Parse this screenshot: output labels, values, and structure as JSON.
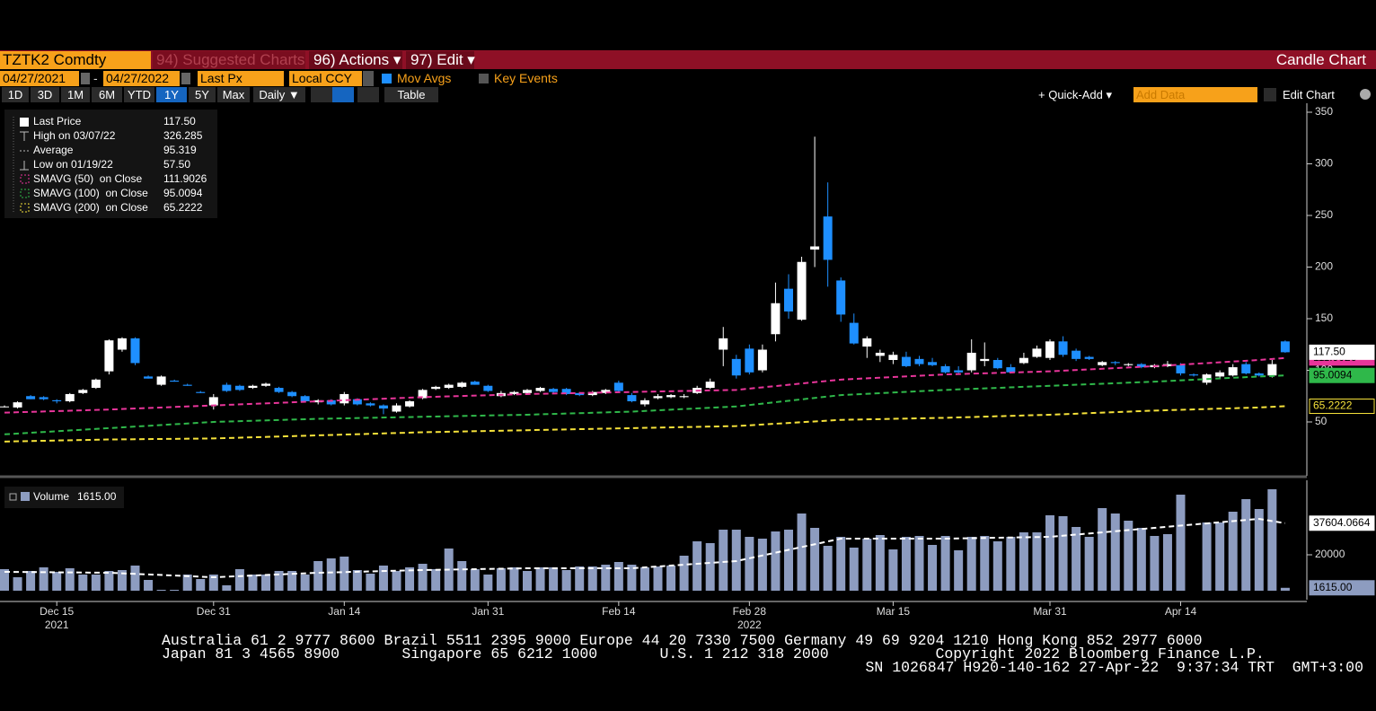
{
  "toolbar": {
    "ticker": "TZTK2 Comdty",
    "menu": [
      "94) Suggested Charts",
      "96) Actions ▾",
      "97) Edit ▾"
    ],
    "chart_title": "Candle Chart",
    "start_date": "04/27/2021",
    "date_separator": "-",
    "end_date": "04/27/2022",
    "field": "Last Px",
    "currency": "Local CCY",
    "options": [
      "Mov Avgs",
      "Key Events"
    ],
    "periods": [
      "1D",
      "3D",
      "1M",
      "6M",
      "YTD",
      "1Y",
      "5Y",
      "Max"
    ],
    "frequency": "Daily ▼",
    "table": "Table",
    "quick_add": "+ Quick-Add ▾",
    "add_data": "Add Data",
    "edit_chart": "Edit Chart"
  },
  "chart_data": [
    {
      "type": "candlestick",
      "up_color": "#ffffff",
      "down_color": "#1e8fff",
      "categories": [
        null,
        null,
        null,
        null,
        "Dec 15",
        null,
        null,
        null,
        null,
        null,
        null,
        null,
        null,
        null,
        null,
        null,
        "Dec 31",
        null,
        null,
        null,
        null,
        null,
        null,
        null,
        null,
        null,
        "Jan 14",
        null,
        null,
        null,
        null,
        null,
        null,
        null,
        null,
        null,
        null,
        "Jan 31",
        null,
        null,
        null,
        null,
        null,
        null,
        null,
        null,
        null,
        "Feb 14",
        null,
        null,
        null,
        null,
        null,
        null,
        null,
        null,
        null,
        "Feb 28",
        null,
        null,
        null,
        null,
        null,
        null,
        null,
        null,
        null,
        null,
        "Mar 15",
        null,
        null,
        null,
        null,
        null,
        null,
        null,
        null,
        null,
        null,
        null,
        "Mar 31",
        null,
        null,
        null,
        null,
        null,
        null,
        null,
        null,
        null,
        "Apr 14",
        null,
        null,
        null,
        null,
        null,
        null,
        null,
        null
      ],
      "years": [
        null,
        null,
        null,
        null,
        "2021",
        null,
        null,
        null,
        null,
        null,
        null,
        null,
        null,
        null,
        null,
        null,
        null,
        null,
        null,
        null,
        null,
        null,
        null,
        null,
        null,
        null,
        null,
        null,
        null,
        null,
        null,
        null,
        null,
        null,
        null,
        null,
        null,
        null,
        null,
        null,
        null,
        null,
        null,
        null,
        null,
        null,
        null,
        null,
        null,
        null,
        null,
        null,
        null,
        null,
        null,
        null,
        null,
        "2022",
        null,
        null,
        null,
        null,
        null,
        null,
        null,
        null,
        null,
        null,
        null,
        null,
        null,
        null,
        null,
        null,
        null,
        null,
        null,
        null,
        null,
        null,
        null,
        null,
        null,
        null,
        null,
        null,
        null,
        null,
        null,
        null,
        null,
        null,
        null,
        null,
        null,
        null,
        null,
        null,
        null
      ],
      "candles": [
        [
          65,
          66,
          64,
          65
        ],
        [
          64,
          70,
          63,
          69
        ],
        [
          75,
          76,
          72,
          72
        ],
        [
          74,
          75,
          71,
          72
        ],
        [
          71,
          72,
          68,
          70
        ],
        [
          70,
          78,
          69,
          77
        ],
        [
          78,
          82,
          77,
          81
        ],
        [
          83,
          92,
          82,
          91
        ],
        [
          99,
          130,
          96,
          129
        ],
        [
          120,
          132,
          118,
          131
        ],
        [
          131,
          132,
          105,
          107
        ],
        [
          94,
          95,
          92,
          92
        ],
        [
          86,
          95,
          85,
          94
        ],
        [
          90,
          91,
          89,
          89
        ],
        [
          86,
          87,
          85,
          85
        ],
        [
          79,
          80,
          78,
          78
        ],
        [
          66,
          77,
          62,
          74
        ],
        [
          86,
          88,
          79,
          80
        ],
        [
          85,
          86,
          80,
          81
        ],
        [
          83,
          86,
          82,
          85
        ],
        [
          85,
          88,
          84,
          87
        ],
        [
          83,
          84,
          78,
          79
        ],
        [
          79,
          80,
          74,
          75
        ],
        [
          75,
          76,
          69,
          70
        ],
        [
          69,
          72,
          67,
          71
        ],
        [
          71,
          72,
          66,
          67
        ],
        [
          68,
          79,
          66,
          77
        ],
        [
          72,
          73,
          66,
          67
        ],
        [
          68,
          69,
          65,
          66
        ],
        [
          66,
          67,
          57.5,
          63
        ],
        [
          60,
          68,
          59,
          66
        ],
        [
          65,
          71,
          64,
          70
        ],
        [
          73,
          82,
          72,
          81
        ],
        [
          82,
          85,
          81,
          84
        ],
        [
          83,
          87,
          82,
          86
        ],
        [
          84,
          89,
          83,
          88
        ],
        [
          89,
          90,
          86,
          86
        ],
        [
          85,
          86,
          79,
          80
        ],
        [
          75,
          80,
          74,
          78
        ],
        [
          77,
          80,
          76,
          79
        ],
        [
          78,
          82,
          77,
          81
        ],
        [
          80,
          84,
          79,
          83
        ],
        [
          82,
          83,
          78,
          79
        ],
        [
          82,
          83,
          76,
          77
        ],
        [
          78,
          79,
          75,
          76
        ],
        [
          76,
          80,
          75,
          79
        ],
        [
          78,
          82,
          77,
          81
        ],
        [
          88,
          90,
          79,
          80
        ],
        [
          76,
          78,
          69,
          70
        ],
        [
          67,
          73,
          65,
          71
        ],
        [
          73,
          77,
          72,
          75
        ],
        [
          74,
          77,
          73,
          76
        ],
        [
          74,
          77,
          73,
          75
        ],
        [
          78,
          85,
          77,
          83
        ],
        [
          83,
          92,
          82,
          89
        ],
        [
          120,
          142,
          104,
          131
        ],
        [
          111,
          115,
          92,
          95
        ],
        [
          121,
          125,
          96,
          98
        ],
        [
          100,
          125,
          98,
          120
        ],
        [
          135,
          185,
          128,
          165
        ],
        [
          179,
          193,
          150,
          157
        ],
        [
          149,
          210,
          148,
          205
        ],
        [
          217,
          326.285,
          200,
          220
        ],
        [
          249,
          282,
          181,
          207
        ],
        [
          187,
          190,
          147,
          154
        ],
        [
          146,
          155,
          125,
          126
        ],
        [
          123,
          133,
          112,
          131
        ],
        [
          114,
          120,
          108,
          117
        ],
        [
          110,
          118,
          106,
          115
        ],
        [
          113,
          118,
          103,
          104
        ],
        [
          111,
          114,
          104,
          106
        ],
        [
          108,
          112,
          104,
          105
        ],
        [
          104,
          106,
          97,
          98
        ],
        [
          100,
          104,
          97,
          98
        ],
        [
          100,
          130,
          98,
          117
        ],
        [
          109,
          127,
          104,
          111
        ],
        [
          110,
          112,
          101,
          102
        ],
        [
          103,
          106,
          97,
          98
        ],
        [
          107,
          117,
          106,
          112
        ],
        [
          113,
          124,
          112,
          121
        ],
        [
          112,
          130,
          110,
          128
        ],
        [
          128,
          133,
          113,
          115
        ],
        [
          119,
          121,
          109,
          111
        ],
        [
          113,
          114,
          110,
          111
        ],
        [
          105,
          109,
          104,
          108
        ],
        [
          108,
          109,
          105,
          107
        ],
        [
          105,
          107,
          104,
          106
        ],
        [
          106,
          107,
          102,
          103
        ],
        [
          103,
          106,
          102,
          105
        ],
        [
          104,
          109,
          103,
          106
        ],
        [
          105,
          107,
          95,
          97
        ],
        [
          96,
          97,
          94,
          95
        ],
        [
          88,
          97,
          86,
          96
        ],
        [
          94,
          100,
          92,
          98
        ],
        [
          95,
          106,
          94,
          103
        ],
        [
          106,
          108,
          96,
          97
        ],
        [
          97,
          98,
          94,
          95
        ],
        [
          95,
          110,
          93,
          106
        ],
        [
          128,
          129,
          117,
          117.5
        ]
      ],
      "stats": [
        {
          "label": "Last Price",
          "value": "117.50"
        },
        {
          "label": "High on 03/07/22",
          "value": "326.285"
        },
        {
          "label": "Average",
          "value": "95.319"
        },
        {
          "label": "Low on 01/19/22",
          "value": "57.50"
        }
      ],
      "series": [
        {
          "name": "SMAVG (50)  on Close",
          "color": "#e8359a",
          "last_label": "111.9026",
          "x": [
            0,
            8,
            16,
            24,
            32,
            40,
            48,
            56,
            64,
            72,
            80,
            88,
            96,
            98
          ],
          "values": [
            59,
            62,
            66,
            70,
            74,
            77,
            79,
            81,
            91,
            96,
            99,
            104,
            110,
            111.9026
          ]
        },
        {
          "name": "SMAVG (100)  on Close",
          "color": "#2fb84a",
          "last_label": "95.0094",
          "x": [
            0,
            8,
            16,
            24,
            32,
            40,
            48,
            56,
            64,
            72,
            80,
            88,
            96,
            98
          ],
          "values": [
            38,
            44,
            50,
            53,
            55,
            57,
            60,
            65,
            76,
            81,
            85,
            89,
            94,
            95.0094
          ]
        },
        {
          "name": "SMAVG (200)  on Close",
          "color": "#f5e13a",
          "last_label": "65.2222",
          "x": [
            0,
            8,
            16,
            24,
            32,
            40,
            48,
            56,
            64,
            72,
            80,
            88,
            96,
            98
          ],
          "values": [
            31,
            33,
            34,
            37,
            40,
            42,
            44,
            46,
            52,
            54,
            57,
            61,
            64,
            65.2222
          ]
        }
      ],
      "ylim": [
        0,
        350
      ],
      "yticks": [
        50,
        100,
        150,
        200,
        250,
        300,
        350
      ]
    },
    {
      "type": "bar",
      "name": "Volume",
      "color": "#8d9cc0",
      "last_label": "1615.00",
      "values": [
        12000,
        7500,
        11000,
        13000,
        10500,
        12500,
        9000,
        9000,
        11000,
        11500,
        14000,
        6000,
        500,
        500,
        9000,
        6500,
        9000,
        3000,
        12000,
        9000,
        9000,
        11000,
        11000,
        9000,
        16500,
        18000,
        19000,
        11500,
        9500,
        14000,
        11000,
        13000,
        15000,
        12000,
        23500,
        16500,
        12000,
        9000,
        12500,
        13000,
        11000,
        13000,
        13000,
        11500,
        13500,
        13500,
        14500,
        16000,
        14500,
        13000,
        13500,
        14000,
        19500,
        27500,
        26500,
        34000,
        34000,
        30000,
        29000,
        33000,
        34000,
        43000,
        35000,
        25000,
        30000,
        24000,
        29000,
        31000,
        23000,
        30000,
        30500,
        25500,
        30500,
        22500,
        30000,
        30500,
        27500,
        30000,
        32500,
        32500,
        42000,
        41500,
        35500,
        30000,
        46000,
        43000,
        39000,
        35000,
        30500,
        31500,
        53500,
        null,
        38000,
        38000,
        44000,
        51000,
        45500,
        56500,
        1615
      ],
      "average": {
        "color": "#ffffff",
        "last_label": "37604.0664",
        "x": [
          0,
          8,
          16,
          24,
          32,
          40,
          48,
          56,
          64,
          72,
          80,
          88,
          96,
          98
        ],
        "values": [
          10500,
          10000,
          7500,
          10000,
          11500,
          12500,
          12500,
          16500,
          29000,
          29000,
          30000,
          35000,
          40000,
          37604.0664
        ]
      },
      "ylim": [
        0,
        60000
      ],
      "yticks": [
        20000
      ]
    }
  ],
  "footer": [
    "Australia 61 2 9777 8600 Brazil 5511 2395 9000 Europe 44 20 7330 7500 Germany 49 69 9204 1210 Hong Kong 852 2977 6000",
    "Japan 81 3 4565 8900       Singapore 65 6212 1000       U.S. 1 212 318 2000            Copyright 2022 Bloomberg Finance L.P.",
    "SN 1026847 H920-140-162 27-Apr-22  9:37:34 TRT  GMT+3:00"
  ]
}
